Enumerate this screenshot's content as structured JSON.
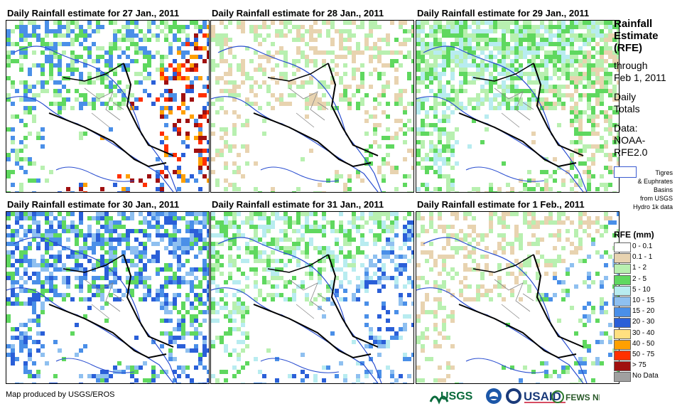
{
  "panels": [
    {
      "title": "Daily Rainfall estimate for 27 Jan., 2011"
    },
    {
      "title": "Daily Rainfall estimate for 28 Jan., 2011"
    },
    {
      "title": "Daily Rainfall estimate for 29 Jan., 2011"
    },
    {
      "title": "Daily Rainfall estimate for 30 Jan., 2011"
    },
    {
      "title": "Daily Rainfall estimate for 31 Jan., 2011"
    },
    {
      "title": "Daily Rainfall estimate for 1 Feb., 2011"
    }
  ],
  "sidebar": {
    "title_lines": [
      "Rainfall",
      "Estimate",
      "(RFE)"
    ],
    "subtitle_lines": [
      "through",
      "Feb 1, 2011"
    ],
    "totals_lines": [
      "Daily",
      "Totals"
    ],
    "data_lines": [
      "Data:",
      "NOAA-",
      "RFE2.0"
    ],
    "basin_note_lines": [
      "Tigres",
      "& Euphrates",
      "Basins",
      "from USGS",
      "Hydro 1k data"
    ]
  },
  "legend": {
    "title": "RFE (mm)",
    "items": [
      {
        "label": "0 - 0.1",
        "color": "#ffffff"
      },
      {
        "label": "0.1 - 1",
        "color": "#e8d3b0"
      },
      {
        "label": "1 - 2",
        "color": "#b8f0b0"
      },
      {
        "label": "2 - 5",
        "color": "#5fd85f"
      },
      {
        "label": "5 - 10",
        "color": "#b8ecf0"
      },
      {
        "label": "10 - 15",
        "color": "#8fc0f0"
      },
      {
        "label": "15 - 20",
        "color": "#4a8fe8"
      },
      {
        "label": "20 - 30",
        "color": "#2a5fd8"
      },
      {
        "label": "30 - 40",
        "color": "#ffe080"
      },
      {
        "label": "40 - 50",
        "color": "#ffa000"
      },
      {
        "label": "50 - 75",
        "color": "#ff3000"
      },
      {
        "label": "> 75",
        "color": "#a01010"
      },
      {
        "label": "No Data",
        "color": "#a0a0a0"
      }
    ]
  },
  "footer": {
    "credit": "Map produced by USGS/EROS",
    "logos": [
      "USGS",
      "NOAA",
      "USAID",
      "FEWS NET"
    ]
  }
}
